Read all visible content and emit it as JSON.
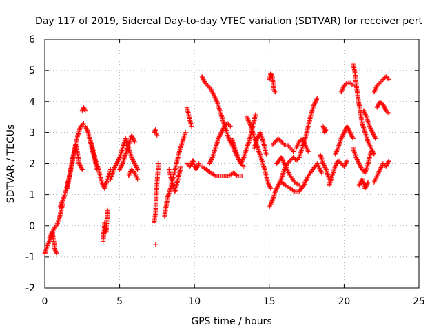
{
  "chart_data": {
    "type": "scatter",
    "title": "Day 117 of 2019, Sidereal Day-to-day VTEC variation (SDTVAR) for receiver pert",
    "xlabel": "GPS time / hours",
    "ylabel": "SDTVAR / TECUs",
    "xlim": [
      0,
      25
    ],
    "ylim": [
      -2,
      6
    ],
    "xticks": [
      "0",
      "5",
      "10",
      "15",
      "20",
      "25"
    ],
    "yticks": [
      "-2",
      "-1",
      "0",
      "1",
      "2",
      "3",
      "4",
      "5",
      "6"
    ],
    "grid": true,
    "marker": "+",
    "color": "#ff0000",
    "series": [
      {
        "name": "SDTVAR",
        "tracks": [
          {
            "x": [
              0.0,
              0.2,
              0.4,
              0.6,
              0.8,
              1.0,
              1.2
            ],
            "y": [
              -0.9,
              -0.6,
              -0.4,
              -0.1,
              0.0,
              0.3,
              0.7
            ]
          },
          {
            "x": [
              0.3,
              0.5,
              0.6,
              0.7,
              0.8
            ],
            "y": [
              -0.4,
              -0.2,
              -0.5,
              -0.8,
              -0.9
            ]
          },
          {
            "x": [
              1.0,
              1.2,
              1.4,
              1.6,
              1.8,
              2.0,
              2.2,
              2.4,
              2.6
            ],
            "y": [
              0.6,
              0.8,
              1.1,
              1.5,
              2.0,
              2.5,
              2.9,
              3.2,
              3.3
            ]
          },
          {
            "x": [
              1.5,
              1.7,
              1.9,
              2.1,
              2.3,
              2.5
            ],
            "y": [
              1.2,
              1.7,
              2.2,
              2.6,
              2.0,
              1.8
            ]
          },
          {
            "x": [
              2.5,
              2.6,
              2.7
            ],
            "y": [
              3.7,
              3.8,
              3.7
            ]
          },
          {
            "x": [
              2.7,
              2.9,
              3.1,
              3.3,
              3.5
            ],
            "y": [
              3.2,
              3.0,
              2.6,
              2.2,
              1.8
            ]
          },
          {
            "x": [
              3.0,
              3.2,
              3.4,
              3.6,
              3.8,
              4.0,
              4.2,
              4.4
            ],
            "y": [
              2.8,
              2.5,
              2.1,
              1.8,
              1.4,
              1.2,
              1.5,
              1.8
            ]
          },
          {
            "x": [
              3.9,
              4.0,
              4.1,
              4.2
            ],
            "y": [
              -0.5,
              0.1,
              -0.2,
              0.5
            ]
          },
          {
            "x": [
              4.4,
              4.6,
              4.8,
              5.0,
              5.2,
              5.4,
              5.6,
              5.8,
              6.0,
              6.2
            ],
            "y": [
              1.5,
              1.8,
              2.0,
              2.2,
              2.5,
              2.8,
              2.5,
              2.2,
              2.0,
              1.8
            ]
          },
          {
            "x": [
              5.0,
              5.2,
              5.4,
              5.6,
              5.8,
              6.0
            ],
            "y": [
              1.8,
              2.0,
              2.3,
              2.6,
              2.9,
              2.7
            ]
          },
          {
            "x": [
              5.6,
              5.8,
              6.0,
              6.2
            ],
            "y": [
              1.6,
              1.8,
              1.7,
              1.5
            ]
          },
          {
            "x": [
              7.3,
              7.4,
              7.5
            ],
            "y": [
              3.0,
              3.1,
              2.9
            ]
          },
          {
            "x": [
              7.3,
              7.4,
              7.5,
              7.6
            ],
            "y": [
              0.1,
              0.4,
              1.4,
              2.0
            ]
          },
          {
            "x": [
              7.4
            ],
            "y": [
              -0.6
            ]
          },
          {
            "x": [
              8.0,
              8.2,
              8.4,
              8.6,
              8.8,
              9.0,
              9.2,
              9.4
            ],
            "y": [
              0.3,
              0.9,
              1.2,
              1.6,
              2.0,
              2.4,
              2.7,
              3.0
            ]
          },
          {
            "x": [
              8.3,
              8.5,
              8.7,
              8.9,
              9.1
            ],
            "y": [
              1.8,
              1.4,
              1.1,
              1.5,
              1.9
            ]
          },
          {
            "x": [
              9.5,
              9.6,
              9.7,
              9.8
            ],
            "y": [
              3.8,
              3.6,
              3.4,
              3.2
            ]
          },
          {
            "x": [
              9.5,
              9.7,
              9.9,
              10.1,
              10.3
            ],
            "y": [
              2.0,
              1.9,
              2.1,
              1.8,
              2.0
            ]
          },
          {
            "x": [
              10.5,
              10.7,
              10.9,
              11.1,
              11.3,
              11.5,
              11.7,
              11.9,
              12.1,
              12.3,
              12.5,
              12.7,
              12.9,
              13.1,
              13.3
            ],
            "y": [
              4.8,
              4.6,
              4.5,
              4.4,
              4.2,
              4.0,
              3.7,
              3.4,
              3.1,
              2.8,
              2.6,
              2.4,
              2.2,
              2.0,
              1.9
            ]
          },
          {
            "x": [
              10.5,
              10.8,
              11.1,
              11.4,
              11.7,
              12.0,
              12.3,
              12.6,
              12.9,
              13.2
            ],
            "y": [
              1.9,
              1.8,
              1.7,
              1.6,
              1.6,
              1.6,
              1.6,
              1.7,
              1.6,
              1.6
            ]
          },
          {
            "x": [
              11.0,
              11.2,
              11.4,
              11.6,
              11.8,
              12.0,
              12.2,
              12.4
            ],
            "y": [
              2.0,
              2.2,
              2.5,
              2.8,
              3.0,
              3.2,
              3.3,
              3.2
            ]
          },
          {
            "x": [
              12.5,
              12.7,
              12.9,
              13.1,
              13.3,
              13.5,
              13.7,
              13.9,
              14.1
            ],
            "y": [
              2.8,
              2.5,
              2.2,
              2.0,
              2.2,
              2.5,
              2.8,
              3.2,
              3.6
            ]
          },
          {
            "x": [
              13.5,
              13.7,
              13.9,
              14.1,
              14.3,
              14.5,
              14.7,
              14.9,
              15.1
            ],
            "y": [
              3.5,
              3.3,
              3.0,
              2.7,
              2.4,
              2.1,
              1.8,
              1.4,
              1.2
            ]
          },
          {
            "x": [
              14.0,
              14.2,
              14.4,
              14.6,
              14.8
            ],
            "y": [
              2.5,
              2.8,
              3.0,
              2.7,
              2.3
            ]
          },
          {
            "x": [
              15.0,
              15.1,
              15.2,
              15.3,
              15.4
            ],
            "y": [
              4.7,
              4.9,
              4.8,
              4.4,
              4.3
            ]
          },
          {
            "x": [
              15.0,
              15.2,
              15.4,
              15.6,
              15.8,
              16.0,
              16.2,
              16.4,
              16.6,
              16.8,
              17.0,
              17.2,
              17.4,
              17.6,
              17.8,
              18.0,
              18.2
            ],
            "y": [
              0.6,
              0.8,
              1.1,
              1.3,
              1.5,
              1.8,
              2.0,
              2.1,
              2.2,
              2.1,
              2.2,
              2.5,
              2.8,
              3.2,
              3.6,
              3.9,
              4.1
            ]
          },
          {
            "x": [
              15.2,
              15.4,
              15.6,
              15.8,
              16.0,
              16.2,
              16.4,
              16.6
            ],
            "y": [
              2.6,
              2.7,
              2.8,
              2.7,
              2.6,
              2.6,
              2.5,
              2.4
            ]
          },
          {
            "x": [
              15.8,
              16.1,
              16.4,
              16.7,
              17.0,
              17.3,
              17.6,
              17.9,
              18.2,
              18.5
            ],
            "y": [
              1.4,
              1.3,
              1.2,
              1.1,
              1.1,
              1.3,
              1.6,
              1.8,
              2.0,
              1.7
            ]
          },
          {
            "x": [
              15.5,
              15.8,
              16.1,
              16.4,
              16.7,
              17.0
            ],
            "y": [
              2.0,
              2.2,
              1.9,
              1.6,
              1.4,
              1.3
            ]
          },
          {
            "x": [
              16.8,
              17.0,
              17.2,
              17.4,
              17.6
            ],
            "y": [
              2.5,
              2.7,
              2.8,
              2.6,
              2.4
            ]
          },
          {
            "x": [
              18.4,
              18.6,
              18.8,
              19.0
            ],
            "y": [
              2.3,
              2.0,
              1.8,
              1.5
            ]
          },
          {
            "x": [
              18.6,
              18.7,
              18.8
            ],
            "y": [
              3.2,
              3.0,
              3.1
            ]
          },
          {
            "x": [
              19.0,
              19.2,
              19.4,
              19.6,
              19.8,
              20.0,
              20.2
            ],
            "y": [
              1.3,
              1.6,
              1.9,
              2.1,
              2.0,
              1.9,
              2.1
            ]
          },
          {
            "x": [
              19.4,
              19.6,
              19.8,
              20.0,
              20.2,
              20.4,
              20.6
            ],
            "y": [
              2.3,
              2.5,
              2.8,
              3.0,
              3.2,
              3.0,
              2.8
            ]
          },
          {
            "x": [
              19.8,
              20.0,
              20.2,
              20.4,
              20.6
            ],
            "y": [
              4.3,
              4.5,
              4.6,
              4.6,
              4.5
            ]
          },
          {
            "x": [
              20.6,
              20.7,
              20.8,
              20.9,
              21.0,
              21.1,
              21.2,
              21.4,
              21.6,
              21.8,
              22.0
            ],
            "y": [
              5.2,
              5.0,
              4.6,
              4.2,
              3.9,
              3.6,
              3.3,
              3.0,
              2.7,
              2.5,
              2.3
            ]
          },
          {
            "x": [
              20.6,
              20.8,
              21.0,
              21.2,
              21.4,
              21.6,
              21.8
            ],
            "y": [
              2.5,
              2.2,
              2.0,
              1.8,
              1.7,
              2.0,
              2.4
            ]
          },
          {
            "x": [
              21.3,
              21.5,
              21.7,
              21.9,
              22.1
            ],
            "y": [
              3.7,
              3.5,
              3.2,
              3.0,
              2.8
            ]
          },
          {
            "x": [
              21.0,
              21.2,
              21.4,
              21.6
            ],
            "y": [
              1.3,
              1.5,
              1.2,
              1.4
            ]
          },
          {
            "x": [
              22.0,
              22.2,
              22.4,
              22.6,
              22.8,
              23.0
            ],
            "y": [
              4.3,
              4.5,
              4.6,
              4.7,
              4.8,
              4.7
            ]
          },
          {
            "x": [
              22.2,
              22.4,
              22.6,
              22.8,
              23.0
            ],
            "y": [
              3.8,
              4.0,
              3.9,
              3.7,
              3.6
            ]
          },
          {
            "x": [
              22.0,
              22.2,
              22.4,
              22.6,
              22.8,
              23.0
            ],
            "y": [
              1.4,
              1.6,
              1.8,
              2.0,
              1.9,
              2.1
            ]
          }
        ]
      }
    ]
  }
}
